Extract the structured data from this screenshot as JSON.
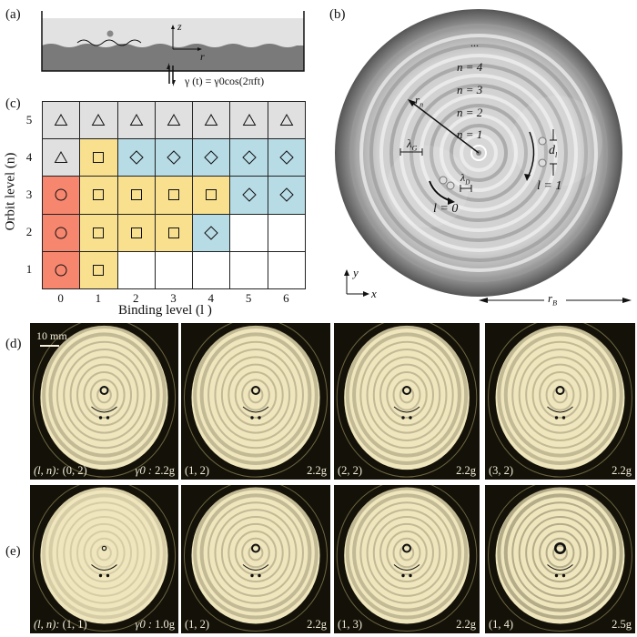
{
  "panel_a": {
    "label": "(a)",
    "axis_z": "z",
    "axis_r": "r",
    "equation": "γ (t) = γ0cos(2πft)"
  },
  "panel_b": {
    "label": "(b)",
    "ellipsis": "...",
    "orbits": [
      "n = 4",
      "n = 3",
      "n = 2",
      "n = 1"
    ],
    "r_n": "r",
    "r_n_sub": "n",
    "lambda_G": "λ",
    "lambda_G_sub": "G",
    "lambda_D": "λ",
    "lambda_D_sub": "D",
    "d_l": "d",
    "d_l_sub": "l",
    "l0": "l = 0",
    "l1": "l = 1",
    "axis_y": "y",
    "axis_x": "x",
    "r_B": "r",
    "r_B_sub": "B"
  },
  "panel_c": {
    "label": "(c)",
    "ylabel": "Orbit level (n)",
    "xlabel": "Binding level (l )",
    "x_ticks": [
      "0",
      "1",
      "2",
      "3",
      "4",
      "5",
      "6"
    ],
    "y_ticks": [
      "5",
      "4",
      "3",
      "2",
      "1"
    ],
    "colors": {
      "circle": "#f7866f",
      "square": "#f8e08f",
      "diamond": "#b8dce6",
      "triangle": "#e0e0e0",
      "empty": "#ffffff"
    },
    "rows": [
      [
        "triangle",
        "triangle",
        "triangle",
        "triangle",
        "triangle",
        "triangle",
        "triangle"
      ],
      [
        "triangle",
        "square",
        "diamond",
        "diamond",
        "diamond",
        "diamond",
        "diamond"
      ],
      [
        "circle",
        "square",
        "square",
        "square",
        "square",
        "diamond",
        "diamond"
      ],
      [
        "circle",
        "square",
        "square",
        "square",
        "diamond",
        "empty",
        "empty"
      ],
      [
        "circle",
        "square",
        "empty",
        "empty",
        "empty",
        "empty",
        "empty"
      ]
    ]
  },
  "panel_d": {
    "label": "(d)",
    "scale_bar": "10 mm",
    "photos": [
      {
        "state_prefix": "(l, n):",
        "state": "(0, 2)",
        "gamma_prefix": "γ0 :",
        "gamma": "2.2g"
      },
      {
        "state": "(1, 2)",
        "gamma": "2.2g"
      },
      {
        "state": "(2, 2)",
        "gamma": "2.2g"
      },
      {
        "state": "(3, 2)",
        "gamma": "2.2g"
      }
    ]
  },
  "panel_e": {
    "label": "(e)",
    "photos": [
      {
        "state_prefix": "(l, n):",
        "state": "(1, 1)",
        "gamma_prefix": "γ0 :",
        "gamma": "1.0g"
      },
      {
        "state": "(1, 2)",
        "gamma": "2.2g"
      },
      {
        "state": "(1, 3)",
        "gamma": "2.2g"
      },
      {
        "state": "(1, 4)",
        "gamma": "2.5g"
      }
    ]
  }
}
